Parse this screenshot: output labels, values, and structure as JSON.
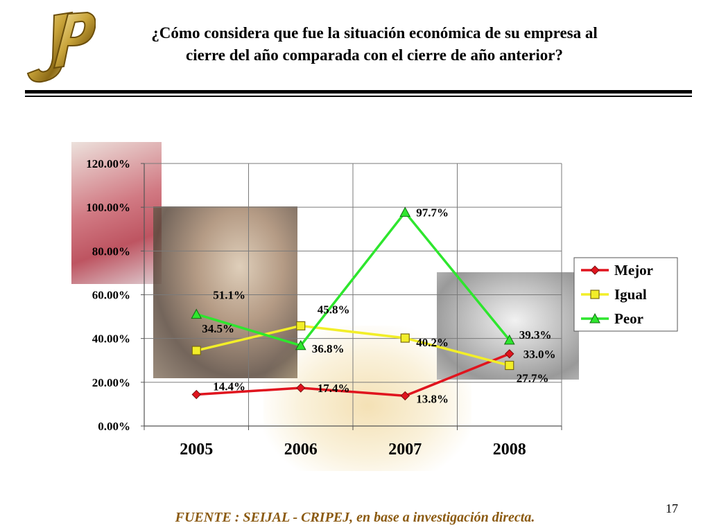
{
  "header": {
    "title_line1": "¿Cómo considera que fue la situación económica de su empresa al",
    "title_line2": "cierre del año comparada con el cierre de año anterior?",
    "logo_text": "JP"
  },
  "footer": {
    "source": "FUENTE :  SEIJAL - CRIPEJ,  en base a investigación directa.",
    "page_number": "17"
  },
  "chart_data": {
    "type": "line",
    "title": "",
    "xlabel": "",
    "ylabel": "",
    "categories": [
      "2005",
      "2006",
      "2007",
      "2008"
    ],
    "ylim": [
      0,
      120
    ],
    "yticks": [
      "0.00%",
      "20.00%",
      "40.00%",
      "60.00%",
      "80.00%",
      "100.00%",
      "120.00%"
    ],
    "grid": true,
    "legend_position": "right",
    "series": [
      {
        "name": "Mejor",
        "color": "#e0141e",
        "marker": "diamond",
        "values": [
          14.4,
          17.4,
          13.8,
          33.0
        ],
        "labels": [
          "14.4%",
          "17.4%",
          "13.8%",
          "33.0%"
        ]
      },
      {
        "name": "Igual",
        "color": "#f2ee28",
        "marker": "square",
        "values": [
          34.5,
          45.8,
          40.2,
          27.7
        ],
        "labels": [
          "34.5%",
          "45.8%",
          "40.2%",
          "27.7%"
        ]
      },
      {
        "name": "Peor",
        "color": "#2ee62e",
        "marker": "triangle",
        "values": [
          51.1,
          36.8,
          97.7,
          39.3
        ],
        "labels": [
          "51.1%",
          "36.8%",
          "97.7%",
          "39.3%"
        ]
      }
    ]
  }
}
